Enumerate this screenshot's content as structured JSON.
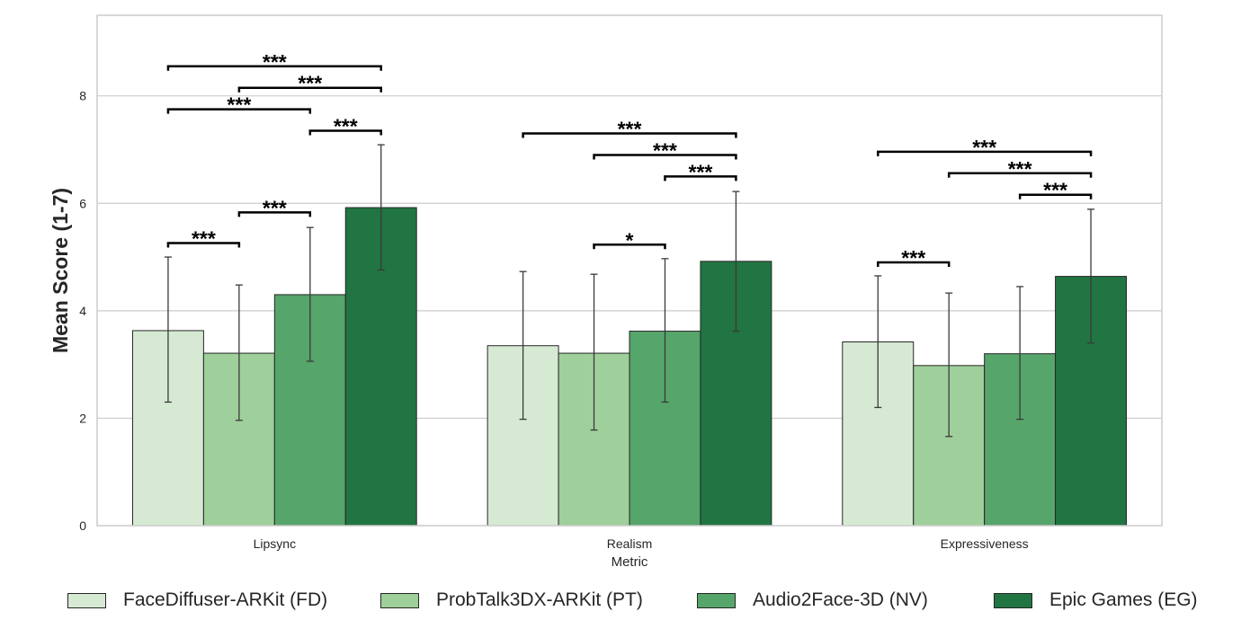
{
  "chart_data": {
    "type": "bar",
    "xlabel": "Metric",
    "ylabel": "Mean Score (1-7)",
    "ylim": [
      0,
      9.5
    ],
    "yticks": [
      0,
      2,
      4,
      6,
      8
    ],
    "grid": "horizontal",
    "legend_position": "bottom",
    "categories": [
      "Lipsync",
      "Realism",
      "Expressiveness"
    ],
    "series": [
      {
        "name": "FaceDiffuser-ARKit (FD)",
        "color": "#d6ead3",
        "values": [
          3.63,
          3.35,
          3.42
        ],
        "err_low": [
          2.3,
          1.98,
          2.2
        ],
        "err_high": [
          5.0,
          4.73,
          4.65
        ]
      },
      {
        "name": "ProbTalk3DX-ARKit (PT)",
        "color": "#9fcf9b",
        "values": [
          3.21,
          3.21,
          2.98
        ],
        "err_low": [
          1.96,
          1.78,
          1.66
        ],
        "err_high": [
          4.48,
          4.68,
          4.33
        ]
      },
      {
        "name": "Audio2Face-3D (NV)",
        "color": "#56a56b",
        "values": [
          4.3,
          3.62,
          3.2
        ],
        "err_low": [
          3.06,
          2.3,
          1.98
        ],
        "err_high": [
          5.55,
          4.97,
          4.45
        ]
      },
      {
        "name": "Epic Games (EG)",
        "color": "#217542",
        "values": [
          5.92,
          4.92,
          4.64
        ],
        "err_low": [
          4.76,
          3.62,
          3.4
        ],
        "err_high": [
          7.09,
          6.22,
          5.89
        ]
      }
    ],
    "significance": [
      {
        "category": 0,
        "from": 0,
        "to": 3,
        "y": 8.55,
        "label": "***"
      },
      {
        "category": 0,
        "from": 1,
        "to": 3,
        "y": 8.15,
        "label": "***"
      },
      {
        "category": 0,
        "from": 0,
        "to": 2,
        "y": 7.75,
        "label": "***"
      },
      {
        "category": 0,
        "from": 2,
        "to": 3,
        "y": 7.35,
        "label": "***"
      },
      {
        "category": 0,
        "from": 1,
        "to": 2,
        "y": 5.83,
        "label": "***"
      },
      {
        "category": 0,
        "from": 0,
        "to": 1,
        "y": 5.26,
        "label": "***"
      },
      {
        "category": 1,
        "from": 0,
        "to": 3,
        "y": 7.3,
        "label": "***"
      },
      {
        "category": 1,
        "from": 1,
        "to": 3,
        "y": 6.9,
        "label": "***"
      },
      {
        "category": 1,
        "from": 2,
        "to": 3,
        "y": 6.5,
        "label": "***"
      },
      {
        "category": 1,
        "from": 1,
        "to": 2,
        "y": 5.23,
        "label": "*"
      },
      {
        "category": 2,
        "from": 0,
        "to": 3,
        "y": 6.96,
        "label": "***"
      },
      {
        "category": 2,
        "from": 1,
        "to": 3,
        "y": 6.56,
        "label": "***"
      },
      {
        "category": 2,
        "from": 2,
        "to": 3,
        "y": 6.16,
        "label": "***"
      },
      {
        "category": 2,
        "from": 0,
        "to": 1,
        "y": 4.9,
        "label": "***"
      }
    ]
  }
}
